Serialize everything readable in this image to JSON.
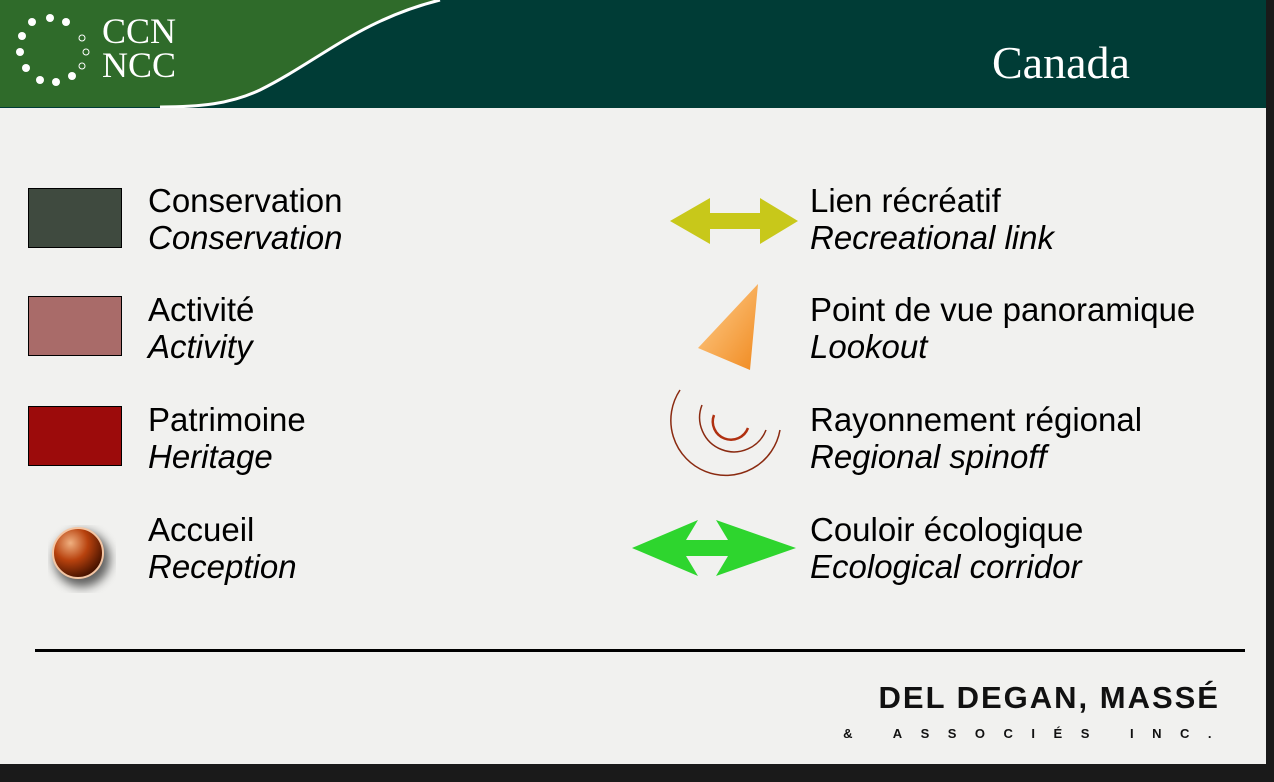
{
  "header": {
    "logo": [
      "CCN",
      "NCC"
    ],
    "wordmark": "Canada"
  },
  "legend": {
    "left": [
      {
        "fr": "Conservation",
        "en": "Conservation"
      },
      {
        "fr": "Activité",
        "en": "Activity"
      },
      {
        "fr": "Patrimoine",
        "en": "Heritage"
      },
      {
        "fr": "Accueil",
        "en": "Reception"
      }
    ],
    "right": [
      {
        "fr": "Lien récréatif",
        "en": "Recreational link"
      },
      {
        "fr": "Point de vue panoramique",
        "en": "Lookout"
      },
      {
        "fr": "Rayonnement régional",
        "en": "Regional spinoff"
      },
      {
        "fr": "Couloir écologique",
        "en": "Ecological corridor"
      }
    ]
  },
  "footer": {
    "company": "DEL DEGAN, MASSÉ",
    "suffix": "& ASSOCIÉS INC."
  }
}
